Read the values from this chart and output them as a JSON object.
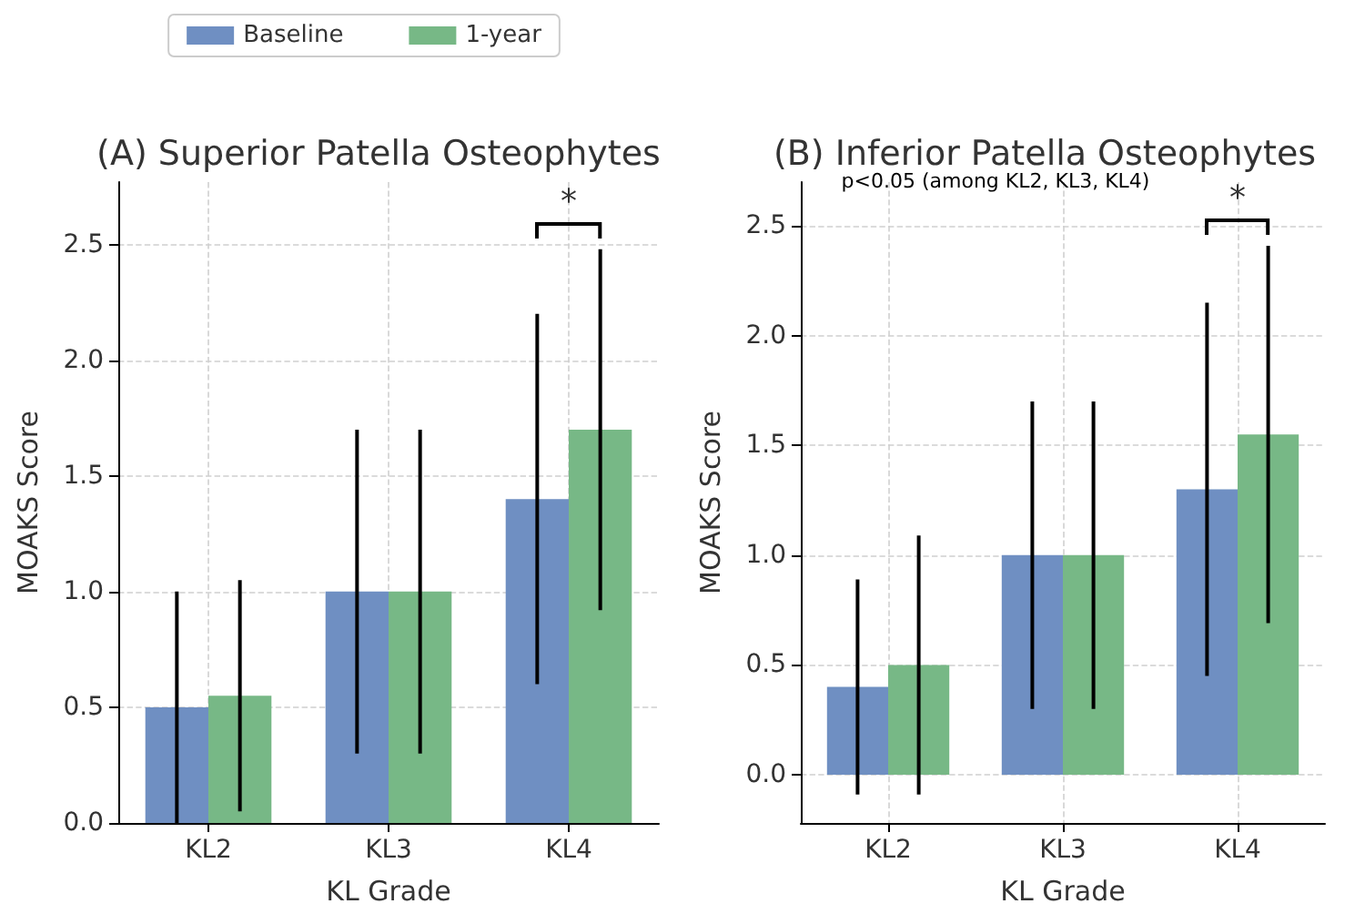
{
  "chart_data": [
    {
      "type": "bar",
      "title": "(A) Superior Patella Osteophytes",
      "xlabel": "KL Grade",
      "ylabel": "MOAKS Score",
      "categories": [
        "KL2",
        "KL3",
        "KL4"
      ],
      "series": [
        {
          "name": "Baseline",
          "color": "#6f8fc2",
          "values": [
            0.5,
            1.0,
            1.4
          ],
          "errors": [
            0.5,
            0.7,
            0.8
          ]
        },
        {
          "name": "1-year",
          "color": "#77b886",
          "values": [
            0.55,
            1.0,
            1.7
          ],
          "errors": [
            0.5,
            0.7,
            0.78
          ]
        }
      ],
      "ylim": [
        0,
        2.77
      ],
      "yticks": [
        {
          "value": 0,
          "label": "0.0"
        },
        0.5,
        {
          "value": 1,
          "label": "1.0"
        },
        1.5,
        {
          "value": 2,
          "label": "2.0"
        },
        2.5
      ],
      "grid": true,
      "legend": "top",
      "annotations": [
        "*"
      ]
    },
    {
      "type": "bar",
      "title": "(B) Inferior Patella Osteophytes",
      "xlabel": "KL Grade",
      "ylabel": "MOAKS Score",
      "categories": [
        "KL2",
        "KL3",
        "KL4"
      ],
      "series": [
        {
          "color": "#6f8fc2",
          "values": [
            0.4,
            1.0,
            1.3
          ],
          "errors": [
            0.49,
            0.7,
            0.85
          ]
        },
        {
          "color": "#77b886",
          "values": [
            0.5,
            1.0,
            1.55
          ],
          "errors": [
            0.59,
            0.7,
            0.86
          ]
        }
      ],
      "ylim": [
        -0.22,
        2.7
      ],
      "yticks": [
        {
          "value": 0,
          "label": "0.0"
        },
        0.5,
        {
          "value": 1,
          "label": "1.0"
        },
        1.5,
        {
          "value": 2,
          "label": "2.0"
        },
        2.5
      ],
      "grid": true,
      "annotations": [
        "p<0.05 (among KL2, KL3, KL4)",
        "*"
      ]
    }
  ]
}
